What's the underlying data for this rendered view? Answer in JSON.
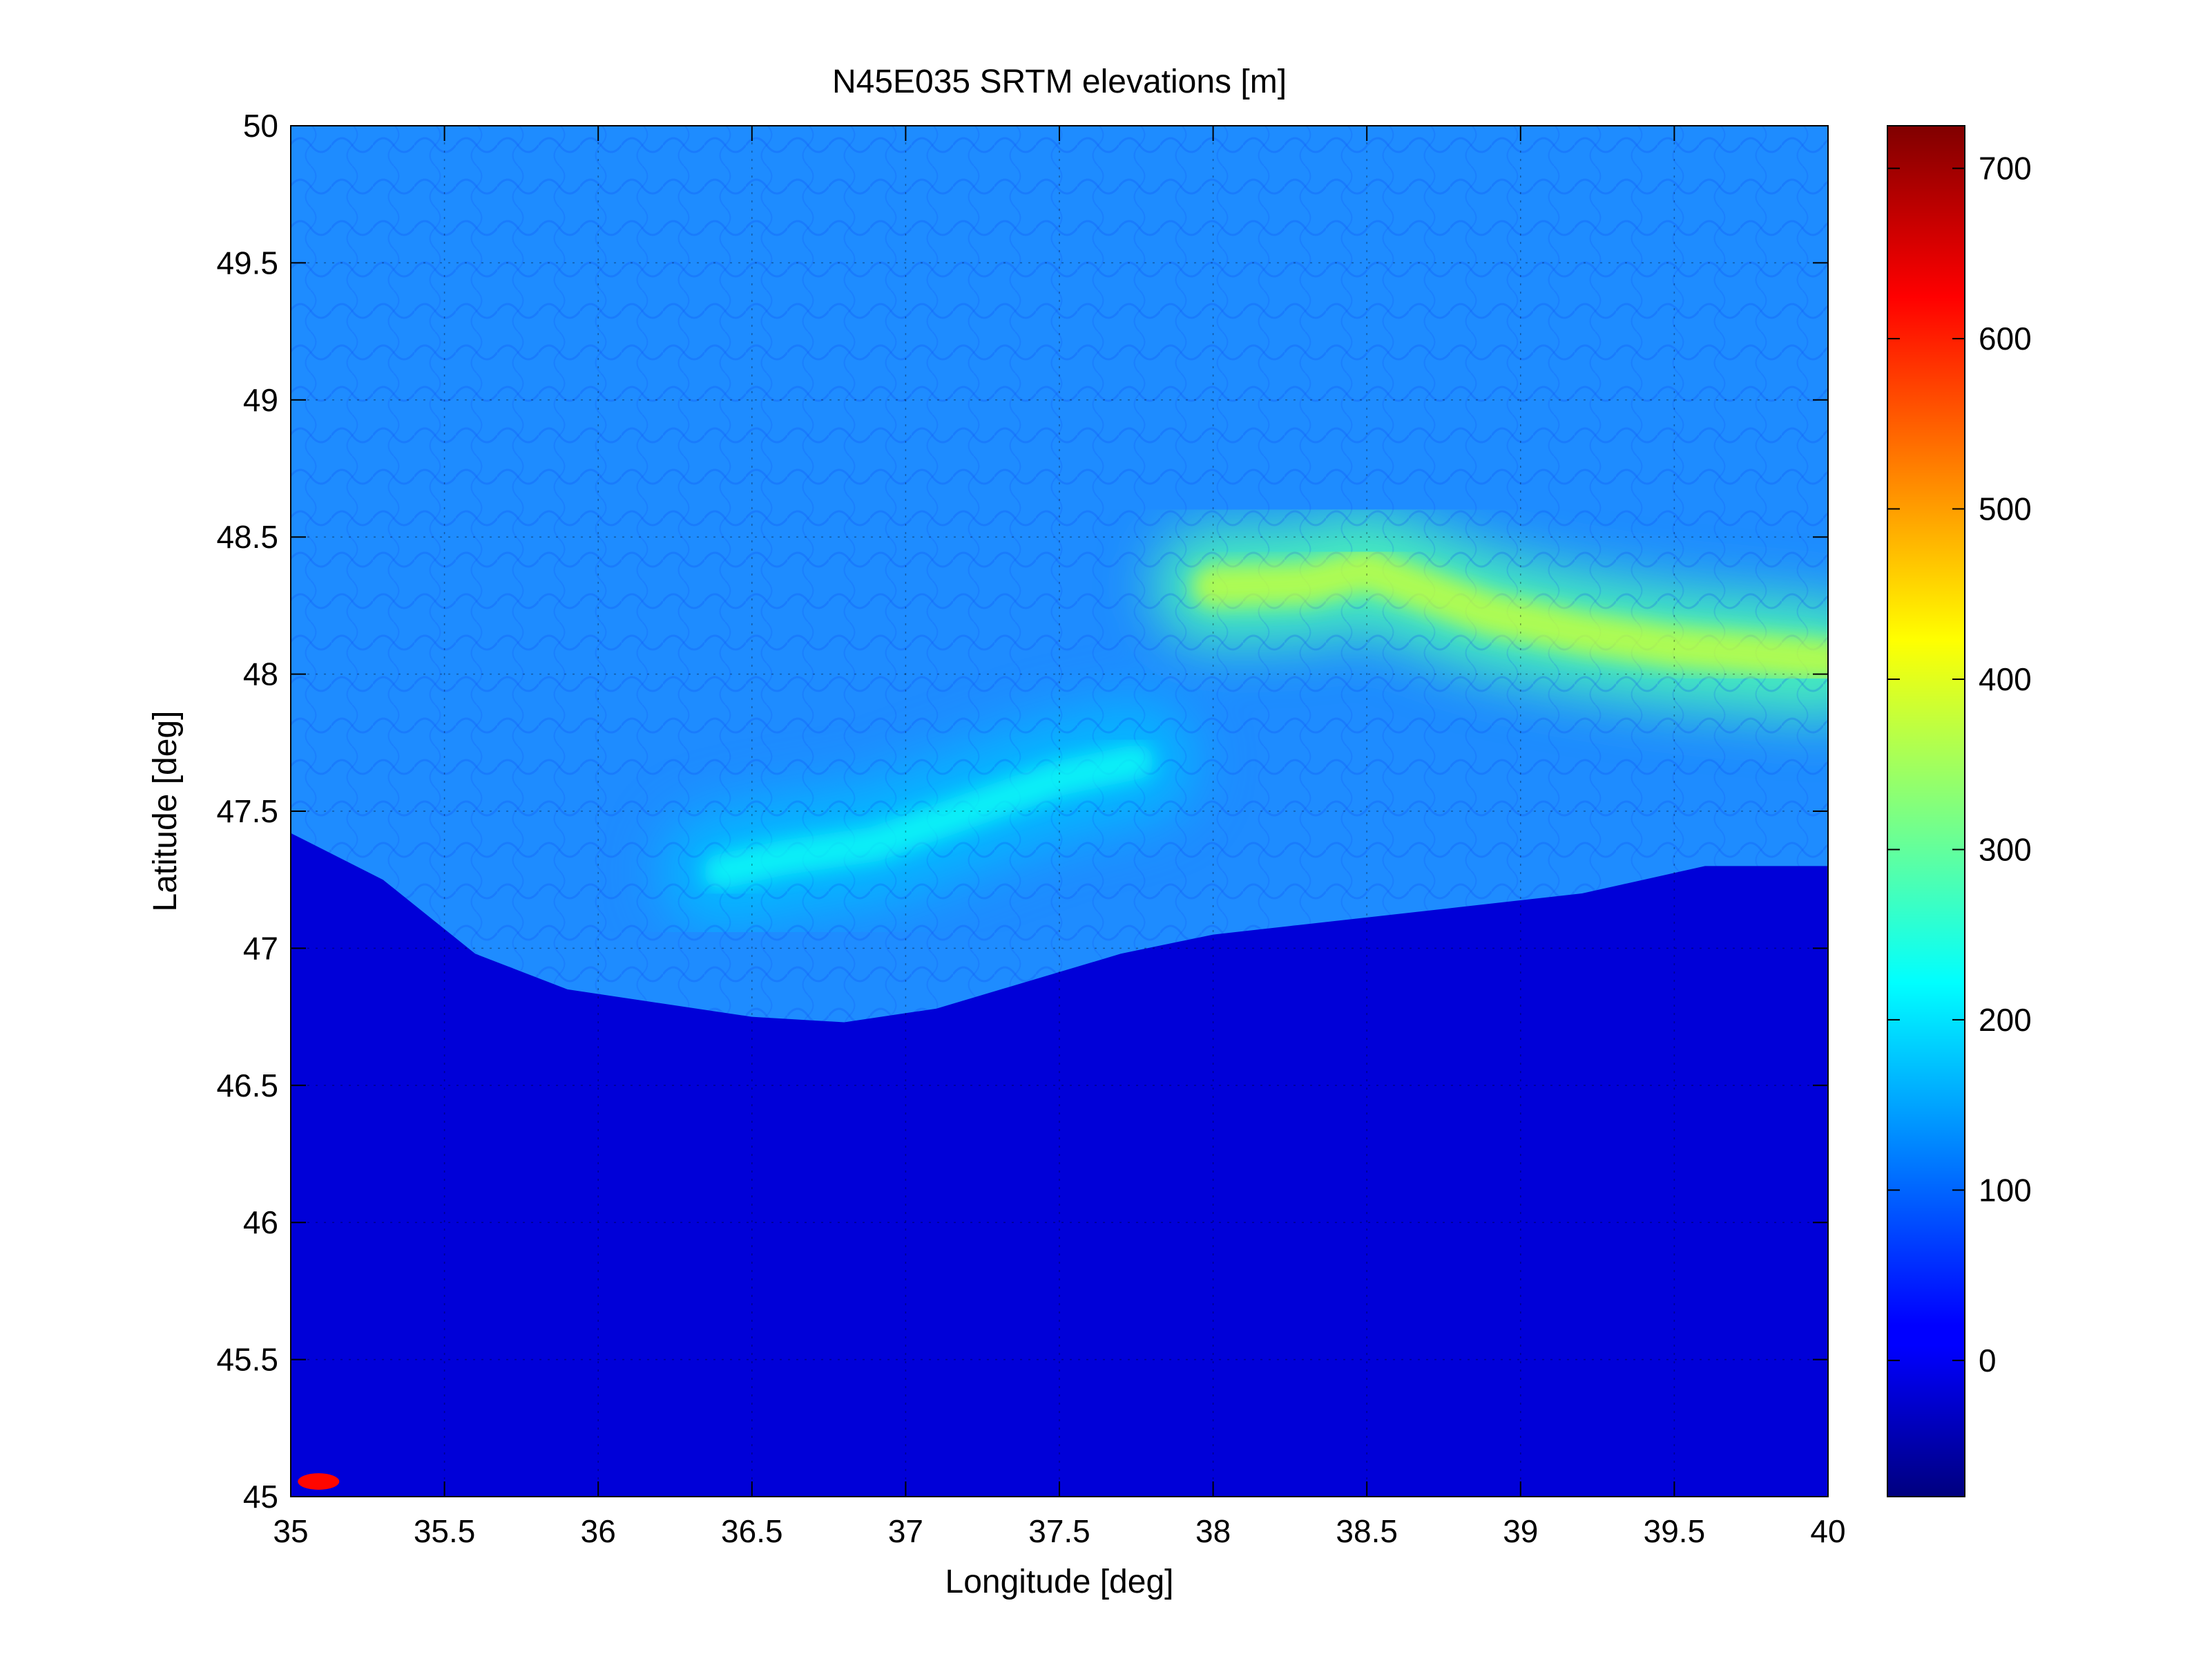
{
  "chart_data": {
    "type": "heatmap",
    "title": "N45E035 SRTM elevations [m]",
    "xlabel": "Longitude [deg]",
    "ylabel": "Latitude [deg]",
    "xlim": [
      35,
      40
    ],
    "ylim": [
      45,
      50
    ],
    "x_ticks": [
      35,
      35.5,
      36,
      36.5,
      37,
      37.5,
      38,
      38.5,
      39,
      39.5,
      40
    ],
    "x_tick_labels": [
      "35",
      "35.5",
      "36",
      "36.5",
      "37",
      "37.5",
      "38",
      "38.5",
      "39",
      "39.5",
      "40"
    ],
    "y_ticks": [
      45,
      45.5,
      46,
      46.5,
      47,
      47.5,
      48,
      48.5,
      49,
      49.5,
      50
    ],
    "y_tick_labels": [
      "45",
      "45.5",
      "46",
      "46.5",
      "47",
      "47.5",
      "48",
      "48.5",
      "49",
      "49.5",
      "50"
    ],
    "grid": true,
    "colormap": "jet",
    "colorbar": {
      "clim": [
        -80,
        725
      ],
      "ticks": [
        0,
        100,
        200,
        300,
        400,
        500,
        600,
        700
      ],
      "tick_labels": [
        "0",
        "100",
        "200",
        "300",
        "400",
        "500",
        "600",
        "700"
      ],
      "placement": "right"
    },
    "features": [
      {
        "kind": "coast",
        "points": [
          [
            35,
            47.42
          ],
          [
            35.3,
            47.25
          ],
          [
            35.6,
            46.98
          ],
          [
            35.9,
            46.85
          ],
          [
            36.2,
            46.8
          ],
          [
            36.5,
            46.75
          ],
          [
            36.8,
            46.73
          ],
          [
            37.1,
            46.78
          ],
          [
            37.4,
            46.88
          ],
          [
            37.7,
            46.98
          ],
          [
            38.0,
            47.05
          ],
          [
            38.4,
            47.1
          ],
          [
            38.8,
            47.15
          ],
          [
            39.2,
            47.2
          ],
          [
            39.6,
            47.3
          ],
          [
            40,
            47.3
          ]
        ]
      },
      {
        "kind": "high-ridge",
        "points": [
          [
            38.0,
            48.32
          ],
          [
            38.3,
            48.33
          ],
          [
            38.5,
            48.38
          ],
          [
            38.7,
            48.3
          ],
          [
            38.9,
            48.22
          ],
          [
            39.2,
            48.15
          ],
          [
            39.5,
            48.1
          ],
          [
            39.8,
            48.07
          ],
          [
            40,
            48.05
          ]
        ],
        "elevation": 380
      },
      {
        "kind": "highland",
        "points": [
          [
            36.4,
            47.28
          ],
          [
            36.6,
            47.33
          ],
          [
            36.9,
            47.38
          ],
          [
            37.2,
            47.5
          ],
          [
            37.5,
            47.62
          ],
          [
            37.75,
            47.68
          ]
        ],
        "elevation": 230
      },
      {
        "kind": "peak",
        "lon": 35.05,
        "lat": 45.03,
        "elevation": 620
      }
    ]
  }
}
